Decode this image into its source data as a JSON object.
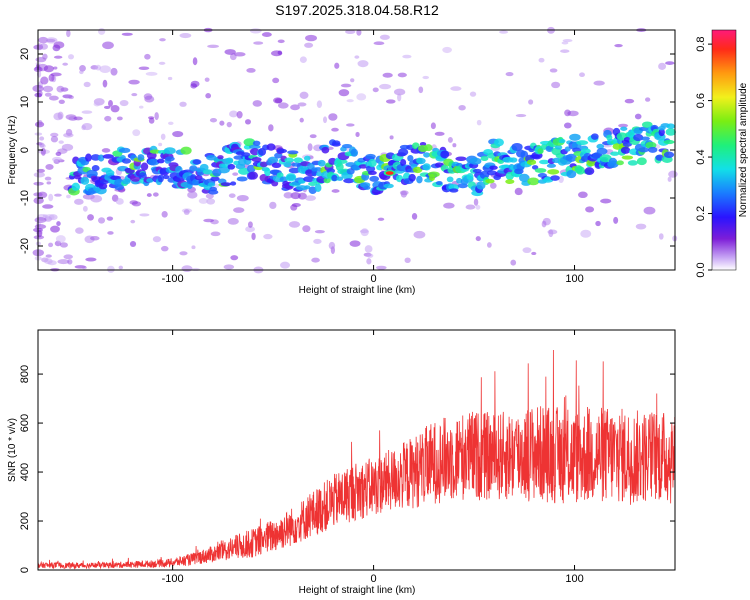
{
  "title": "S197.2025.318.04.58.R12",
  "chart_data": [
    {
      "type": "heatmap",
      "name": "spectrogram",
      "xlabel": "Height of straight line (km)",
      "ylabel": "Frequency (Hz)",
      "xlim": [
        -167,
        150
      ],
      "ylim": [
        -25,
        25
      ],
      "xticks": [
        -100,
        0,
        100
      ],
      "xtick_labels": [
        "-100",
        "0",
        "100"
      ],
      "yticks": [
        -20,
        -10,
        0,
        10,
        20
      ],
      "ytick_labels": [
        "-20",
        "-10",
        "0",
        "10",
        "20"
      ],
      "colorbar": {
        "label": "Normalized spectral amplitude",
        "range": [
          0,
          0.85
        ],
        "ticks": [
          0,
          0.2,
          0.4,
          0.6,
          0.8
        ],
        "tick_labels": [
          "0.0",
          "0.2",
          "0.4",
          "0.6",
          "0.8"
        ]
      },
      "ridge": {
        "x": [
          -145,
          -130,
          -110,
          -95,
          -80,
          -70,
          -60,
          -45,
          -30,
          -20,
          -10,
          0,
          10,
          20,
          30,
          40,
          50,
          60,
          70,
          80,
          90,
          100,
          110,
          120,
          130,
          140,
          148
        ],
        "freq": [
          -6,
          -4,
          -3,
          -4,
          -5,
          -3,
          -2,
          -4,
          -5,
          -2,
          -3,
          -5,
          -4,
          -2,
          -3,
          -5,
          -6,
          -2,
          -3,
          -3,
          -2,
          -1,
          -1,
          0,
          1,
          2,
          2
        ]
      }
    },
    {
      "type": "line",
      "name": "snr",
      "xlabel": "Height of straight line (km)",
      "ylabel": "SNR (10 * v/v)",
      "xlim": [
        -167,
        150
      ],
      "ylim": [
        0,
        980
      ],
      "xticks": [
        -100,
        0,
        100
      ],
      "xtick_labels": [
        "-100",
        "0",
        "100"
      ],
      "yticks": [
        0,
        200,
        400,
        600,
        800
      ],
      "ytick_labels": [
        "0",
        "200",
        "400",
        "600",
        "800"
      ],
      "series": [
        {
          "name": "SNR",
          "color": "#ee3333",
          "x": [
            -167,
            -150,
            -130,
            -110,
            -100,
            -90,
            -80,
            -70,
            -60,
            -50,
            -40,
            -30,
            -20,
            -10,
            0,
            10,
            20,
            30,
            40,
            50,
            60,
            70,
            80,
            90,
            100,
            110,
            120,
            130,
            140,
            150
          ],
          "mean": [
            20,
            18,
            20,
            25,
            30,
            45,
            65,
            90,
            110,
            140,
            180,
            230,
            280,
            320,
            340,
            370,
            400,
            440,
            460,
            470,
            460,
            470,
            480,
            470,
            460,
            470,
            470,
            460,
            470,
            450
          ],
          "amp": [
            12,
            12,
            12,
            15,
            18,
            25,
            35,
            50,
            60,
            70,
            80,
            95,
            110,
            120,
            120,
            130,
            150,
            170,
            180,
            185,
            180,
            190,
            200,
            200,
            195,
            200,
            200,
            195,
            190,
            190
          ]
        }
      ]
    }
  ]
}
